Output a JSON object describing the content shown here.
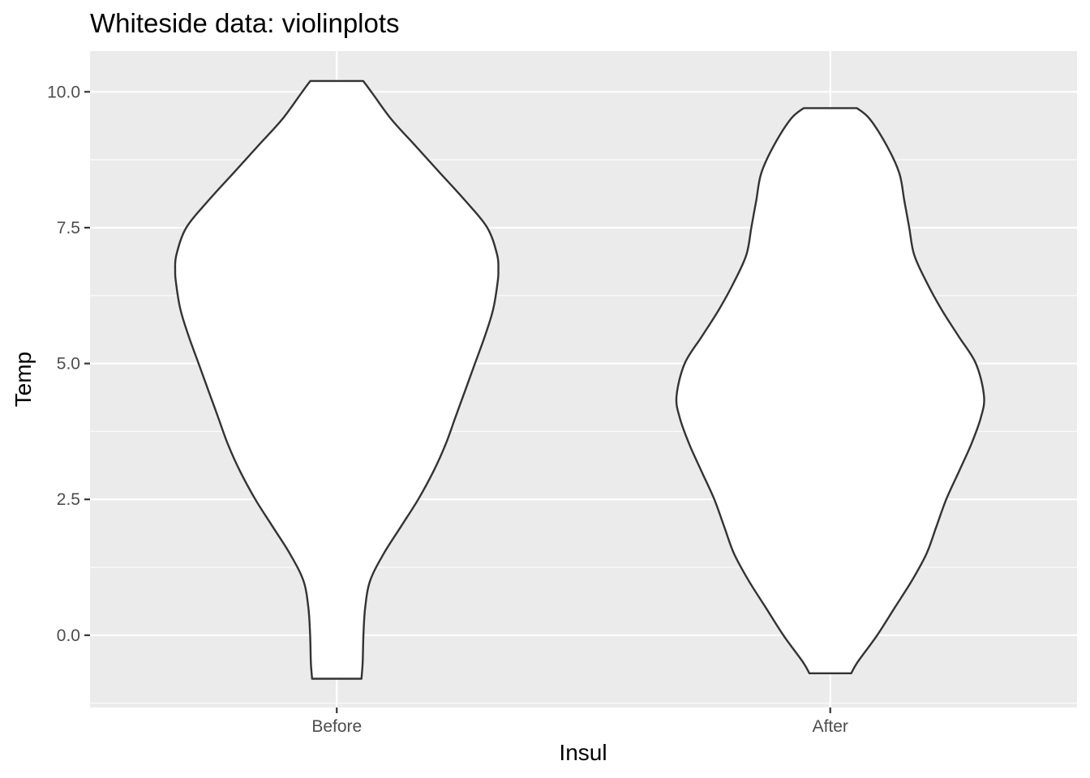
{
  "chart_data": {
    "type": "violin",
    "title": "Whiteside data: violinplots",
    "xlabel": "Insul",
    "ylabel": "Temp",
    "categories": [
      "Before",
      "After"
    ],
    "ylim": [
      -1.33,
      10.75
    ],
    "y_ticks": [
      0.0,
      2.5,
      5.0,
      7.5,
      10.0
    ],
    "y_tick_labels": [
      "0.0",
      "2.5",
      "5.0",
      "7.5",
      "10.0"
    ],
    "grid": true,
    "legend": "none",
    "colors": {
      "panel": "#ebebeb",
      "grid": "#ffffff",
      "violin_fill": "#ffffff",
      "violin_stroke": "#333333",
      "tick_text": "#4d4d4d"
    },
    "series": [
      {
        "category": "Before",
        "min": -0.8,
        "max": 10.2,
        "density_halfwidth": [
          [
            -0.8,
            0.1
          ],
          [
            -0.5,
            0.105
          ],
          [
            0.0,
            0.108
          ],
          [
            0.5,
            0.115
          ],
          [
            1.0,
            0.135
          ],
          [
            1.5,
            0.19
          ],
          [
            2.0,
            0.26
          ],
          [
            2.5,
            0.33
          ],
          [
            3.0,
            0.39
          ],
          [
            3.5,
            0.44
          ],
          [
            4.0,
            0.48
          ],
          [
            4.5,
            0.52
          ],
          [
            5.0,
            0.56
          ],
          [
            5.5,
            0.6
          ],
          [
            6.0,
            0.634
          ],
          [
            6.5,
            0.652
          ],
          [
            6.7,
            0.655
          ],
          [
            7.0,
            0.65
          ],
          [
            7.5,
            0.61
          ],
          [
            8.0,
            0.52
          ],
          [
            8.5,
            0.42
          ],
          [
            9.0,
            0.32
          ],
          [
            9.5,
            0.22
          ],
          [
            10.0,
            0.14
          ],
          [
            10.2,
            0.107
          ]
        ]
      },
      {
        "category": "After",
        "min": -0.7,
        "max": 9.7,
        "density_halfwidth": [
          [
            -0.7,
            0.085
          ],
          [
            -0.5,
            0.11
          ],
          [
            0.0,
            0.19
          ],
          [
            0.5,
            0.26
          ],
          [
            1.0,
            0.33
          ],
          [
            1.5,
            0.39
          ],
          [
            2.0,
            0.43
          ],
          [
            2.5,
            0.47
          ],
          [
            3.0,
            0.52
          ],
          [
            3.5,
            0.57
          ],
          [
            4.0,
            0.61
          ],
          [
            4.4,
            0.623
          ],
          [
            5.0,
            0.59
          ],
          [
            5.5,
            0.52
          ],
          [
            6.0,
            0.45
          ],
          [
            6.5,
            0.39
          ],
          [
            7.0,
            0.34
          ],
          [
            7.5,
            0.32
          ],
          [
            8.0,
            0.3
          ],
          [
            8.5,
            0.28
          ],
          [
            9.0,
            0.23
          ],
          [
            9.5,
            0.16
          ],
          [
            9.7,
            0.108
          ]
        ]
      }
    ]
  }
}
